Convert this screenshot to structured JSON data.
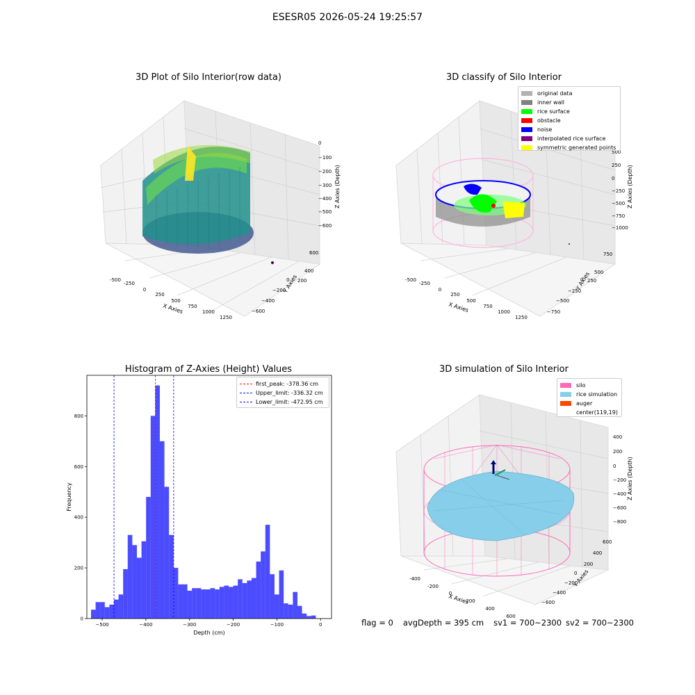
{
  "suptitle": "ESESR05 2026-05-24 19:25:57",
  "panels": {
    "raw": {
      "title": "3D Plot of Silo Interior(row data)",
      "xlabel": "X Axies",
      "ylabel": "Y Axies",
      "zlabel": "Z Axies (Depth)",
      "xticks": [
        "-500",
        "-250",
        "0",
        "250",
        "500",
        "750",
        "1000",
        "1250"
      ],
      "yticks": [
        "600",
        "400",
        "200",
        "0",
        "−200",
        "−400",
        "−600"
      ],
      "zticks": [
        "0",
        "−100",
        "−200",
        "−300",
        "−400",
        "−500",
        "−600"
      ]
    },
    "classify": {
      "title": "3D classify of Silo Interior",
      "xlabel": "X Axies",
      "ylabel": "Y Axies",
      "zlabel": "Z Axies (Depth)",
      "xticks": [
        "-500",
        "-250",
        "0",
        "250",
        "500",
        "750",
        "1000",
        "1250"
      ],
      "yticks": [
        "750",
        "500",
        "250",
        "0",
        "−250",
        "−500",
        "−750"
      ],
      "zticks": [
        "500",
        "250",
        "0",
        "−250",
        "−500",
        "−750",
        "−1000"
      ],
      "legend": [
        {
          "label": "original data",
          "color": "#b3b3b3"
        },
        {
          "label": "inner wall",
          "color": "#808080"
        },
        {
          "label": "rice surface",
          "color": "#00ff00"
        },
        {
          "label": "obstacle",
          "color": "#ff0000"
        },
        {
          "label": "noise",
          "color": "#0000ff"
        },
        {
          "label": "interpolated rice surface",
          "color": "#800080"
        },
        {
          "label": "symmetric generated points",
          "color": "#ffff00"
        }
      ]
    },
    "simulation": {
      "title": "3D simulation of Silo Interior",
      "xlabel": "X Axies",
      "ylabel": "Y Axies",
      "zlabel": "Z Axies (Depth)",
      "xticks": [
        "-400",
        "-200",
        "0",
        "200",
        "400",
        "600"
      ],
      "yticks": [
        "600",
        "400",
        "200",
        "0",
        "−200",
        "−400",
        "−600"
      ],
      "zticks": [
        "400",
        "200",
        "0",
        "−200",
        "−400",
        "−600",
        "−800"
      ],
      "legend": [
        {
          "label": "silo",
          "color": "#ff69b4"
        },
        {
          "label": "rice simulation",
          "color": "#87ceeb"
        },
        {
          "label": "auger",
          "color": "#ff4500"
        },
        {
          "label": "center(119,19)",
          "color": ""
        }
      ]
    }
  },
  "chart_data": {
    "type": "bar",
    "title": "Histogram of Z-Axies (Height) Values",
    "xlabel": "Depth (cm)",
    "ylabel": "Frequency",
    "xlim": [
      -535,
      25
    ],
    "ylim": [
      0,
      960
    ],
    "xticks": [
      "−500",
      "−400",
      "−300",
      "−200",
      "−100",
      "0"
    ],
    "yticks": [
      "0",
      "200",
      "400",
      "600",
      "800"
    ],
    "bar_color": "#0000ff",
    "bin_width": 10.5,
    "bin_left_edges": [
      -525.5,
      -515,
      -504.5,
      -494,
      -483.5,
      -473,
      -462.5,
      -452,
      -441.5,
      -431,
      -420.5,
      -410,
      -399.5,
      -389,
      -378.5,
      -368,
      -357.5,
      -347,
      -336.5,
      -326,
      -315.5,
      -305,
      -294.5,
      -284,
      -273.5,
      -263,
      -252.5,
      -242,
      -231.5,
      -221,
      -210.5,
      -200,
      -189.5,
      -179,
      -168.5,
      -158,
      -147.5,
      -137,
      -126.5,
      -116,
      -105.5,
      -95,
      -84.5,
      -74,
      -63.5,
      -53,
      -42.5,
      -32,
      -21.5,
      -11
    ],
    "values": [
      35,
      65,
      65,
      45,
      55,
      75,
      95,
      195,
      330,
      290,
      240,
      305,
      480,
      800,
      920,
      700,
      520,
      330,
      200,
      135,
      135,
      110,
      120,
      120,
      115,
      115,
      120,
      115,
      125,
      130,
      125,
      130,
      155,
      140,
      150,
      160,
      225,
      265,
      370,
      175,
      95,
      190,
      60,
      55,
      105,
      50,
      20,
      10,
      12,
      0
    ],
    "vlines": [
      {
        "label": "first_peak: -378.36 cm",
        "x": -378.36,
        "color": "#ff0000"
      },
      {
        "label": "Upper_limit: -336.32 cm",
        "x": -336.32,
        "color": "#0000ff"
      },
      {
        "label": "Lower_limit: -472.95 cm",
        "x": -472.95,
        "color": "#0000ff"
      }
    ],
    "legend_position": "upper-right"
  },
  "footer": {
    "flag": "flag = 0",
    "avg": "avgDepth = 395 cm",
    "sv1": "sv1 = 700~2300",
    "sv2": "sv2 = 700~2300"
  }
}
